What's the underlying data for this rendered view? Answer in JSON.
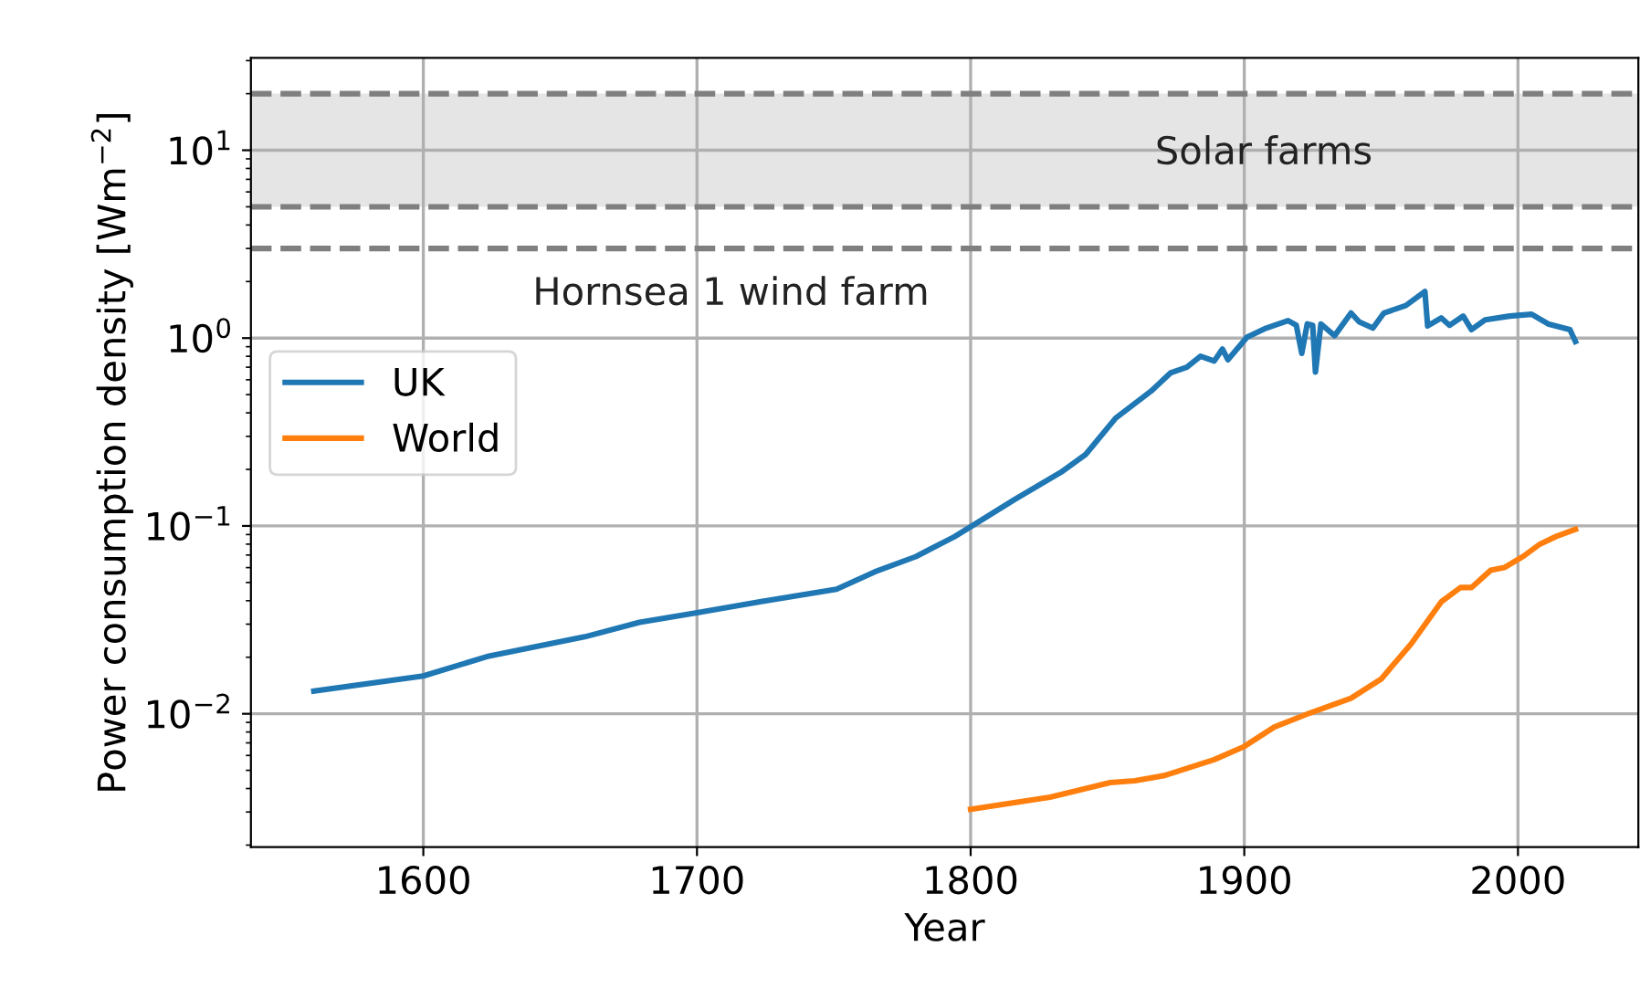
{
  "chart_data": {
    "type": "line",
    "xlabel": "Year",
    "ylabel": "Power consumption density [Wm$^{−2}$]",
    "log": "y",
    "grid": true,
    "legend": "center left",
    "line_style": "solid",
    "marker": "none",
    "xlim": [
      1537,
      2044
    ],
    "xticks": [
      1600,
      1700,
      1800,
      1900,
      2000
    ],
    "ylim": [
      0.00195,
      31
    ],
    "yticks": [
      {
        "value": 0.01,
        "label": "10$^{−2}$"
      },
      {
        "value": 0.1,
        "label": "10$^{−1}$"
      },
      {
        "value": 1,
        "label": "10$^{0}$"
      },
      {
        "value": 10,
        "label": "10$^{1}$"
      }
    ],
    "series": [
      {
        "name": "UK",
        "color": "#1f77b4",
        "x": [
          1560,
          1600,
          1624,
          1659,
          1679,
          1700,
          1723,
          1751,
          1765,
          1780,
          1794,
          1800,
          1816,
          1833,
          1842,
          1853,
          1866,
          1873,
          1879,
          1884,
          1889,
          1892,
          1894,
          1901,
          1908,
          1916,
          1919,
          1921,
          1923,
          1925,
          1926,
          1928,
          1933,
          1939,
          1942,
          1947,
          1951,
          1959,
          1966,
          1967,
          1972,
          1975,
          1980,
          1983,
          1988,
          1997,
          2005,
          2011,
          2019,
          2021
        ],
        "values": [
          0.0132,
          0.0159,
          0.0203,
          0.0257,
          0.0307,
          0.0345,
          0.0395,
          0.046,
          0.057,
          0.0687,
          0.0875,
          0.099,
          0.138,
          0.193,
          0.24,
          0.375,
          0.523,
          0.652,
          0.7,
          0.8,
          0.755,
          0.875,
          0.767,
          1.01,
          1.13,
          1.24,
          1.17,
          0.83,
          1.19,
          1.17,
          0.66,
          1.19,
          1.03,
          1.36,
          1.22,
          1.13,
          1.36,
          1.49,
          1.77,
          1.16,
          1.28,
          1.17,
          1.31,
          1.11,
          1.25,
          1.31,
          1.34,
          1.19,
          1.11,
          0.96
        ]
      },
      {
        "name": "World",
        "color": "#ff7f0e",
        "x": [
          1800,
          1829,
          1851,
          1860,
          1871,
          1889,
          1900,
          1911,
          1924,
          1939,
          1950,
          1961,
          1972,
          1979,
          1983,
          1990,
          1995,
          2002,
          2008,
          2014,
          2021
        ],
        "values": [
          0.0031,
          0.0036,
          0.0043,
          0.0044,
          0.0047,
          0.0057,
          0.0067,
          0.0085,
          0.0101,
          0.0121,
          0.0153,
          0.0236,
          0.0395,
          0.047,
          0.047,
          0.058,
          0.06,
          0.069,
          0.08,
          0.088,
          0.096
        ]
      }
    ],
    "bands": [
      {
        "axis": "y",
        "from": 5,
        "to": 20,
        "color": "#e5e5e5",
        "label": "Solar farms"
      }
    ],
    "ref_lines": [
      {
        "axis": "y",
        "value": 20,
        "color": "#7f7f7f",
        "line_style": "dashed"
      },
      {
        "axis": "y",
        "value": 5,
        "color": "#7f7f7f",
        "line_style": "dashed"
      },
      {
        "axis": "y",
        "value": 3,
        "color": "#7f7f7f",
        "line_style": "dashed",
        "label": "Hornsea 1 wind farm"
      }
    ]
  }
}
